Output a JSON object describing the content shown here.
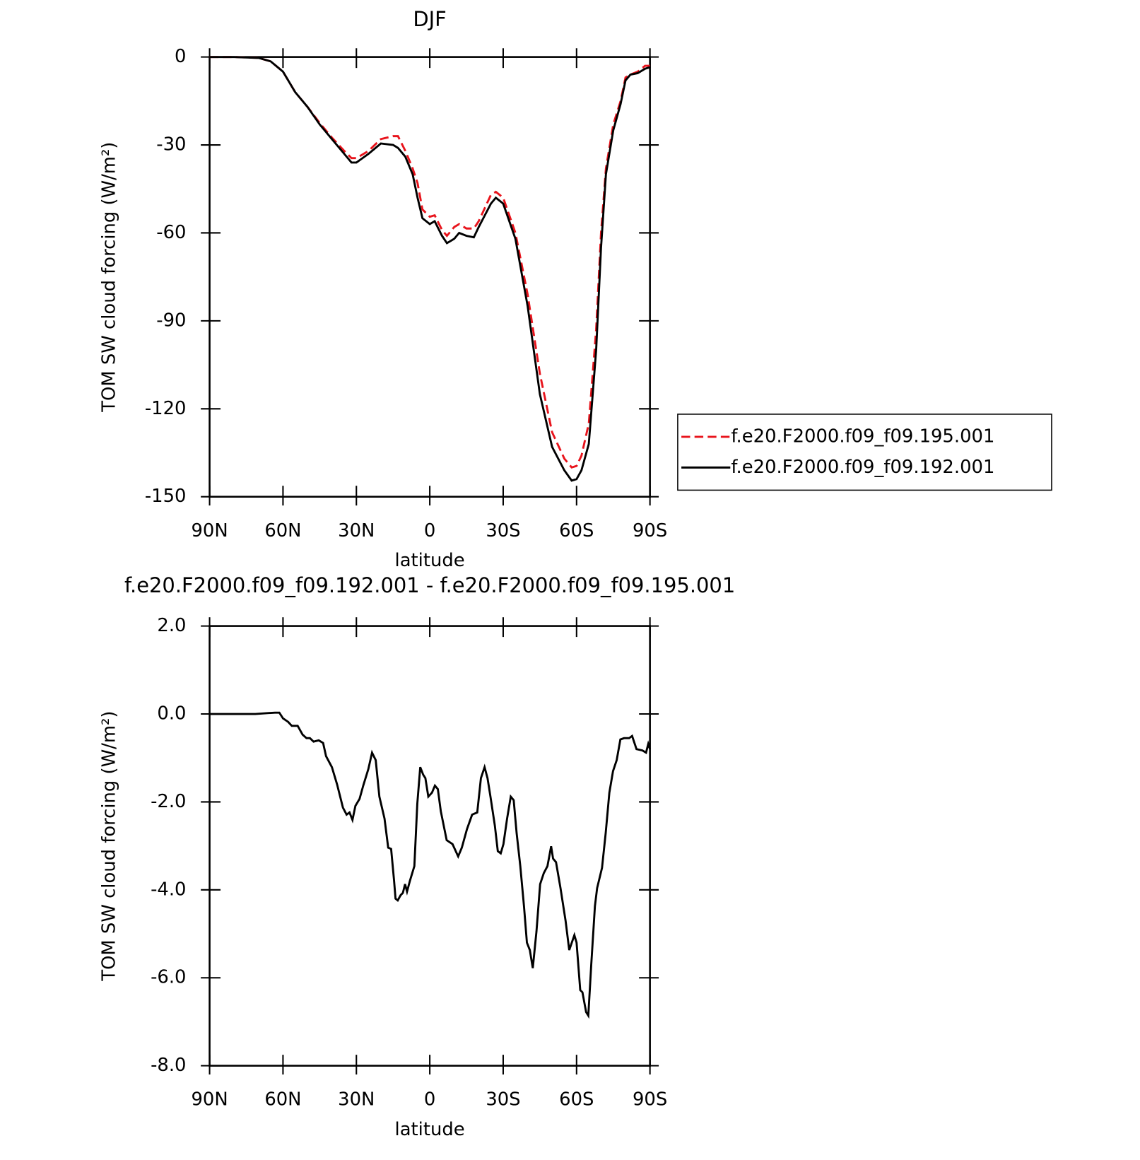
{
  "chart_data": [
    {
      "type": "line",
      "title": "DJF",
      "xlabel": "latitude",
      "ylabel": "TOM SW cloud forcing (W/m²)",
      "xlim": [
        90,
        -90
      ],
      "ylim": [
        -150,
        0
      ],
      "xticks": [
        {
          "value": 90,
          "label": "90N"
        },
        {
          "value": 60,
          "label": "60N"
        },
        {
          "value": 30,
          "label": "30N"
        },
        0,
        {
          "value": -30,
          "label": "30S"
        },
        {
          "value": -60,
          "label": "60S"
        },
        {
          "value": -90,
          "label": "90S"
        }
      ],
      "yticks": [
        0,
        -30,
        -60,
        -90,
        -120,
        -150
      ],
      "legend": "right",
      "x": [
        90,
        80,
        70,
        65,
        60,
        55,
        50,
        45,
        40,
        35,
        32,
        30,
        25,
        20,
        15,
        13,
        10,
        7,
        5,
        3,
        0,
        -2,
        -5,
        -7,
        -10,
        -12,
        -15,
        -18,
        -20,
        -25,
        -27,
        -30,
        -35,
        -40,
        -45,
        -50,
        -55,
        -58,
        -60,
        -62,
        -65,
        -68,
        -70,
        -72,
        -75,
        -78,
        -80,
        -82,
        -85,
        -88,
        -90
      ],
      "series": [
        {
          "name": "f.e20.F2000.f09_f09.195.001",
          "color": "#e8141c",
          "linestyle": "dashed",
          "values": [
            0,
            0,
            -0.3,
            -1.5,
            -5,
            -12,
            -17,
            -22.5,
            -27.5,
            -32,
            -34.5,
            -34.5,
            -32,
            -28,
            -27,
            -27,
            -32,
            -38,
            -43,
            -52,
            -54.5,
            -54,
            -59,
            -61,
            -58,
            -57,
            -58.5,
            -58.5,
            -56,
            -47,
            -46,
            -48,
            -60,
            -81,
            -108,
            -128,
            -137,
            -140,
            -139.5,
            -136,
            -125,
            -93,
            -60,
            -38,
            -23,
            -15,
            -7,
            -6,
            -5,
            -3,
            -3
          ]
        },
        {
          "name": "f.e20.F2000.f09_f09.192.001",
          "color": "#000000",
          "linestyle": "solid",
          "values": [
            0,
            0,
            -0.3,
            -1.5,
            -5,
            -12,
            -17,
            -23,
            -28,
            -33,
            -36,
            -36,
            -33,
            -29.5,
            -30,
            -31,
            -34,
            -40,
            -48,
            -55,
            -57,
            -56,
            -61,
            -63.5,
            -62,
            -60,
            -61,
            -61.5,
            -58,
            -50,
            -48,
            -50,
            -62,
            -85,
            -115,
            -133,
            -141,
            -144.5,
            -144,
            -141,
            -132,
            -100,
            -65,
            -40,
            -25,
            -16,
            -8,
            -6,
            -5.5,
            -4,
            -3.5
          ]
        }
      ]
    },
    {
      "type": "line",
      "title": "f.e20.F2000.f09_f09.192.001 - f.e20.F2000.f09_f09.195.001",
      "xlabel": "latitude",
      "ylabel": "TOM SW cloud forcing (W/m²)",
      "xlim": [
        90,
        -90
      ],
      "ylim": [
        -8,
        2
      ],
      "xticks": [
        {
          "value": 90,
          "label": "90N"
        },
        {
          "value": 60,
          "label": "60N"
        },
        {
          "value": 30,
          "label": "30N"
        },
        0,
        {
          "value": -30,
          "label": "30S"
        },
        {
          "value": -60,
          "label": "60S"
        },
        {
          "value": -90,
          "label": "90S"
        }
      ],
      "yticks": [
        {
          "value": 2,
          "label": "2.0"
        },
        {
          "value": 0,
          "label": "0.0"
        },
        {
          "value": -2,
          "label": "-2.0"
        },
        {
          "value": -4,
          "label": "-4.0"
        },
        {
          "value": -6,
          "label": "-6.0"
        },
        {
          "value": -8,
          "label": "-8.0"
        }
      ],
      "color": "#000000",
      "x": [
        90,
        71.3,
        63.3,
        61.5,
        60,
        57.9,
        56.4,
        54,
        52,
        50.4,
        49,
        47.5,
        45.4,
        43.6,
        42.4,
        40,
        37.9,
        35.5,
        34,
        32.8,
        31.6,
        30.4,
        28.7,
        27.2,
        25.1,
        23.6,
        22.1,
        20.6,
        18.5,
        17,
        15.8,
        14.6,
        14,
        13.1,
        11.9,
        11,
        10.1,
        9.3,
        8.1,
        6.3,
        5.1,
        3.9,
        2.7,
        1.8,
        0.6,
        -0.9,
        -2.1,
        -3.3,
        -4.5,
        -6.9,
        -9.3,
        -11.6,
        -13.1,
        -15.2,
        -17.3,
        -19.4,
        -20.9,
        -22.4,
        -23.6,
        -24.8,
        -26.6,
        -27.8,
        -29,
        -30.1,
        -31.6,
        -33.1,
        -34.3,
        -35.5,
        -37,
        -38.5,
        -39.7,
        -40.9,
        -42.1,
        -43.6,
        -45.1,
        -46.6,
        -48.1,
        -49.6,
        -50.4,
        -51.6,
        -53.4,
        -55.5,
        -57,
        -59.1,
        -60,
        -61.5,
        -62.4,
        -63.9,
        -64.8,
        -66,
        -67.5,
        -68.4,
        -70.4,
        -71.9,
        -73.4,
        -74.9,
        -76.4,
        -77.9,
        -79.4,
        -81.5,
        -82.7,
        -84.5,
        -86.9,
        -88.4,
        -89.3,
        -90
      ],
      "values": [
        0,
        0,
        0.03,
        0.03,
        -0.1,
        -0.18,
        -0.27,
        -0.27,
        -0.47,
        -0.55,
        -0.55,
        -0.63,
        -0.6,
        -0.66,
        -0.96,
        -1.21,
        -1.6,
        -2.13,
        -2.29,
        -2.24,
        -2.41,
        -2.09,
        -1.93,
        -1.63,
        -1.25,
        -0.88,
        -1.05,
        -1.88,
        -2.38,
        -3.04,
        -3.07,
        -3.79,
        -4.2,
        -4.24,
        -4.12,
        -4.07,
        -3.87,
        -4.04,
        -3.79,
        -3.46,
        -2.04,
        -1.21,
        -1.38,
        -1.46,
        -1.88,
        -1.79,
        -1.63,
        -1.71,
        -2.21,
        -2.87,
        -2.96,
        -3.24,
        -3.04,
        -2.62,
        -2.29,
        -2.24,
        -1.46,
        -1.21,
        -1.46,
        -1.88,
        -2.54,
        -3.12,
        -3.17,
        -2.96,
        -2.38,
        -1.88,
        -1.96,
        -2.71,
        -3.46,
        -4.37,
        -5.2,
        -5.37,
        -5.78,
        -4.95,
        -3.87,
        -3.62,
        -3.46,
        -3.01,
        -3.29,
        -3.37,
        -3.95,
        -4.7,
        -5.37,
        -5.03,
        -5.2,
        -6.28,
        -6.33,
        -6.78,
        -6.86,
        -5.7,
        -4.37,
        -3.96,
        -3.5,
        -2.71,
        -1.79,
        -1.3,
        -1.05,
        -0.58,
        -0.55,
        -0.55,
        -0.5,
        -0.8,
        -0.83,
        -0.88,
        -0.68,
        -0.8
      ]
    }
  ]
}
